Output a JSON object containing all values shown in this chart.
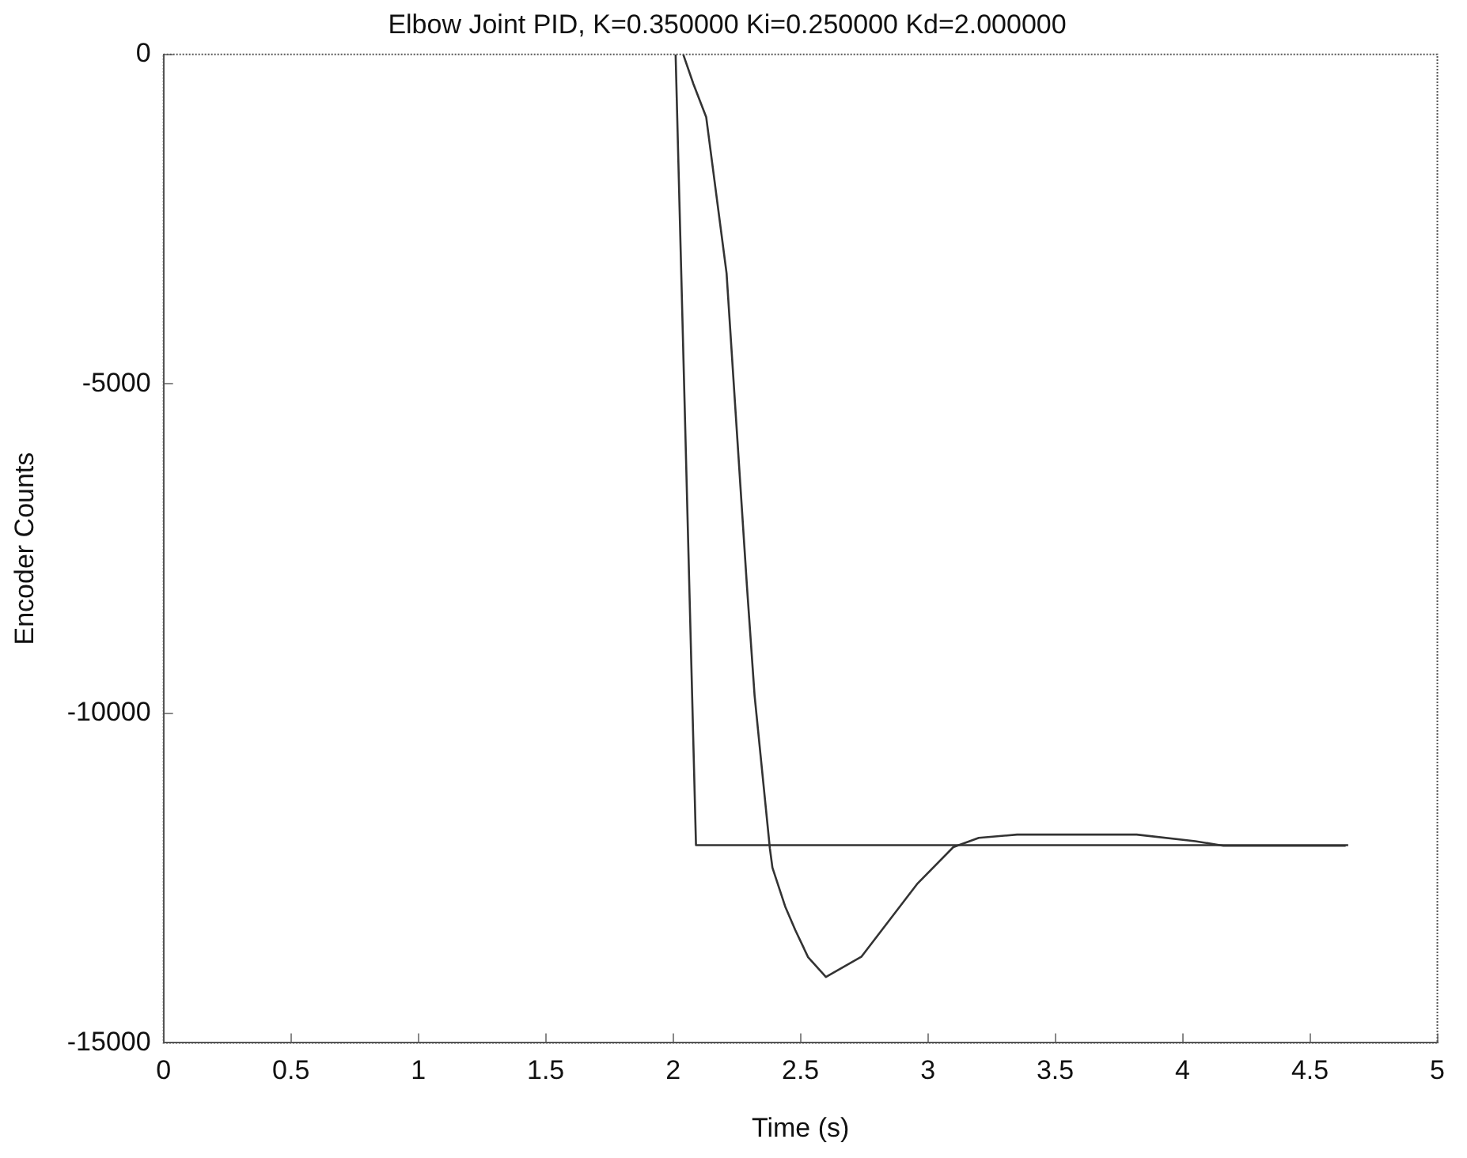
{
  "chart_data": {
    "type": "line",
    "title": "Elbow Joint PID, K=0.350000 Ki=0.250000 Kd=2.000000",
    "xlabel": "Time (s)",
    "ylabel": "Encoder Counts",
    "xlim": [
      0,
      5
    ],
    "xticks": [
      0,
      0.5,
      1,
      1.5,
      2,
      2.5,
      3,
      3.5,
      4,
      4.5,
      5
    ],
    "ylim": [
      -15000,
      0
    ],
    "yticks": [
      -15000,
      -10000,
      -5000,
      0
    ],
    "grid": false,
    "legend": false,
    "marker": "none",
    "line_style": "solid",
    "series": [
      {
        "color": "#333333",
        "x": [
          2.01,
          2.09,
          4.65
        ],
        "values": [
          0,
          -12000,
          -12000
        ]
      },
      {
        "color": "#333333",
        "x": [
          2.04,
          2.08,
          2.13,
          2.21,
          2.25,
          2.29,
          2.32,
          2.38,
          2.39,
          2.44,
          2.48,
          2.53,
          2.6,
          2.74,
          2.96,
          3.1,
          3.2,
          3.35,
          3.82,
          4.05,
          4.16,
          4.64
        ],
        "values": [
          0,
          -450,
          -950,
          -3320,
          -5700,
          -8070,
          -9730,
          -12050,
          -12340,
          -12930,
          -13290,
          -13700,
          -14000,
          -13690,
          -12580,
          -12030,
          -11890,
          -11840,
          -11840,
          -11940,
          -12010,
          -12010
        ]
      }
    ]
  }
}
